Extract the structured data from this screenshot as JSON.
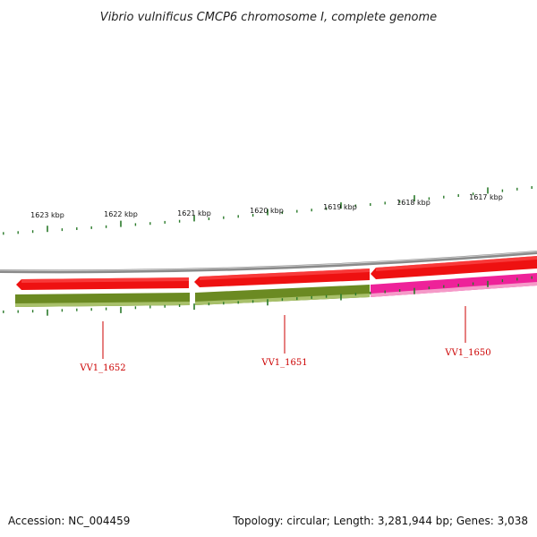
{
  "title": "Vibrio vulnificus CMCP6 chromosome I, complete genome",
  "footer": {
    "accession": "Accession: NC_004459",
    "summary": "Topology: circular; Length: 3,281,944 bp; Genes: 3,038"
  },
  "colors": {
    "backbone": "#8a8a8a",
    "forward_cds": "#ee1111",
    "reverse_olive": "#6b8a22",
    "reverse_magenta": "#ee2299",
    "tick": "#2a7a2a",
    "gene_label": "#cc0000"
  },
  "scale_labels": [
    "1623 kbp",
    "1622 kbp",
    "1621 kbp",
    "1620 kbp",
    "1619 kbp",
    "1618 kbp",
    "1617 kbp"
  ],
  "genes": [
    {
      "label": "VV1_1652",
      "strand": "reverse",
      "color": "olive"
    },
    {
      "label": "VV1_1651",
      "strand": "reverse",
      "color": "olive"
    },
    {
      "label": "VV1_1650",
      "strand": "reverse",
      "color": "magenta"
    }
  ]
}
